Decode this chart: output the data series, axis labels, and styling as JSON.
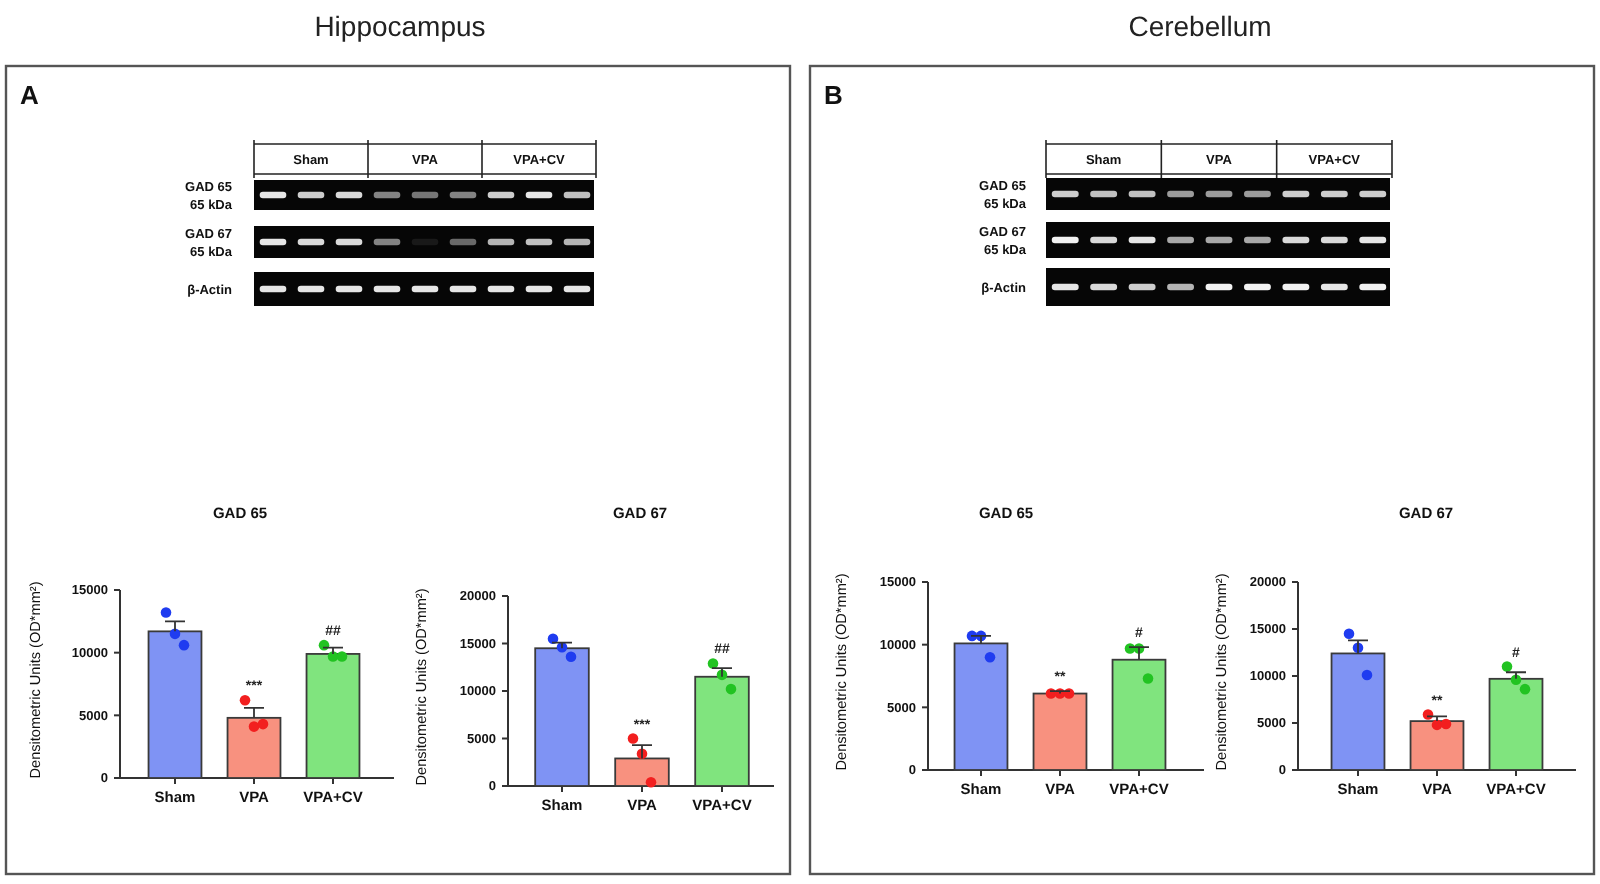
{
  "chart_data": [
    {
      "type": "other",
      "title": "Hippocampus",
      "categories": [
        "Sham",
        "VPA",
        "VPA+CV"
      ],
      "annotations": [
        "A",
        "GAD 65\n65 kDa",
        "GAD 67\n65 kDa",
        "β-Actin"
      ]
    },
    {
      "type": "bar",
      "title": "GAD 65",
      "ylabel": "Densitometric Units (OD*mm²)",
      "categories": [
        "Sham",
        "VPA",
        "VPA+CV"
      ],
      "ylim": [
        0,
        15000
      ],
      "yticks": [
        0,
        5000,
        10000,
        15000
      ],
      "series": [
        {
          "type": "bar",
          "colors": [
            "#7f93f4",
            "#f8917f",
            "#80e47e"
          ],
          "values": [
            11700,
            4800,
            9900
          ],
          "errors": [
            [
              11700,
              12500
            ],
            [
              4800,
              5600
            ],
            [
              9900,
              10400
            ]
          ]
        },
        {
          "type": "scatter",
          "marker": "circle",
          "x": [
            "Sham",
            "Sham",
            "Sham",
            "VPA",
            "VPA",
            "VPA",
            "VPA+CV",
            "VPA+CV",
            "VPA+CV"
          ],
          "values": [
            13200,
            11500,
            10600,
            6200,
            4100,
            4300,
            10600,
            9700,
            9700
          ],
          "colors": [
            "#1f3cf0",
            "#1f3cf0",
            "#1f3cf0",
            "#f21f1f",
            "#f21f1f",
            "#f21f1f",
            "#22c322",
            "#22c322",
            "#22c322"
          ]
        }
      ],
      "annotations": [
        {
          "text": "***",
          "x": "VPA",
          "y": 6200
        },
        {
          "text": "##",
          "x": "VPA+CV",
          "y": 10600
        }
      ]
    },
    {
      "type": "bar",
      "title": "GAD 67",
      "ylabel": "Densitometric Units (OD*mm²)",
      "categories": [
        "Sham",
        "VPA",
        "VPA+CV"
      ],
      "ylim": [
        0,
        20000
      ],
      "yticks": [
        0,
        5000,
        10000,
        15000,
        20000
      ],
      "series": [
        {
          "type": "bar",
          "colors": [
            "#7f93f4",
            "#f8917f",
            "#80e47e"
          ],
          "values": [
            14500,
            2900,
            11500
          ],
          "errors": [
            [
              14500,
              15100
            ],
            [
              2900,
              4300
            ],
            [
              11500,
              12400
            ]
          ]
        },
        {
          "type": "scatter",
          "marker": "circle",
          "x": [
            "Sham",
            "Sham",
            "Sham",
            "VPA",
            "VPA",
            "VPA",
            "VPA+CV",
            "VPA+CV",
            "VPA+CV"
          ],
          "values": [
            15500,
            14600,
            13600,
            5000,
            3400,
            400,
            12900,
            11700,
            10200
          ],
          "colors": [
            "#1f3cf0",
            "#1f3cf0",
            "#1f3cf0",
            "#f21f1f",
            "#f21f1f",
            "#f21f1f",
            "#22c322",
            "#22c322",
            "#22c322"
          ]
        }
      ],
      "annotations": [
        {
          "text": "***",
          "x": "VPA",
          "y": 5000
        },
        {
          "text": "##",
          "x": "VPA+CV",
          "y": 12900
        }
      ]
    },
    {
      "type": "other",
      "title": "Cerebellum",
      "categories": [
        "Sham",
        "VPA",
        "VPA+CV"
      ],
      "annotations": [
        "B",
        "GAD 65\n65 kDa",
        "GAD 67\n65 kDa",
        "β-Actin"
      ]
    },
    {
      "type": "bar",
      "title": "GAD 65",
      "ylabel": "Densitometric Units (OD*mm²)",
      "categories": [
        "Sham",
        "VPA",
        "VPA+CV"
      ],
      "ylim": [
        0,
        15000
      ],
      "yticks": [
        0,
        5000,
        10000,
        15000
      ],
      "series": [
        {
          "type": "bar",
          "colors": [
            "#7f93f4",
            "#f8917f",
            "#80e47e"
          ],
          "values": [
            10100,
            6100,
            8800
          ],
          "errors": [
            [
              10100,
              10700
            ],
            [
              6100,
              6300
            ],
            [
              8800,
              9800
            ]
          ]
        },
        {
          "type": "scatter",
          "marker": "circle",
          "x": [
            "Sham",
            "Sham",
            "Sham",
            "VPA",
            "VPA",
            "VPA",
            "VPA+CV",
            "VPA+CV",
            "VPA+CV"
          ],
          "values": [
            10700,
            10700,
            9000,
            6100,
            6100,
            6100,
            9700,
            9700,
            7300
          ],
          "colors": [
            "#1f3cf0",
            "#1f3cf0",
            "#1f3cf0",
            "#f21f1f",
            "#f21f1f",
            "#f21f1f",
            "#22c322",
            "#22c322",
            "#22c322"
          ]
        }
      ],
      "annotations": [
        {
          "text": "**",
          "x": "VPA",
          "y": 6300
        },
        {
          "text": "#",
          "x": "VPA+CV",
          "y": 9800
        }
      ]
    },
    {
      "type": "bar",
      "title": "GAD 67",
      "ylabel": "Densitometric Units (OD*mm²)",
      "categories": [
        "Sham",
        "VPA",
        "VPA+CV"
      ],
      "ylim": [
        0,
        20000
      ],
      "yticks": [
        0,
        5000,
        10000,
        15000,
        20000
      ],
      "series": [
        {
          "type": "bar",
          "colors": [
            "#7f93f4",
            "#f8917f",
            "#80e47e"
          ],
          "values": [
            12400,
            5200,
            9700
          ],
          "errors": [
            [
              12400,
              13800
            ],
            [
              5200,
              5700
            ],
            [
              9700,
              10400
            ]
          ]
        },
        {
          "type": "scatter",
          "marker": "circle",
          "x": [
            "Sham",
            "Sham",
            "Sham",
            "VPA",
            "VPA",
            "VPA",
            "VPA+CV",
            "VPA+CV",
            "VPA+CV"
          ],
          "values": [
            14500,
            13000,
            10100,
            5900,
            4800,
            4900,
            11000,
            9600,
            8600
          ],
          "colors": [
            "#1f3cf0",
            "#1f3cf0",
            "#1f3cf0",
            "#f21f1f",
            "#f21f1f",
            "#f21f1f",
            "#22c322",
            "#22c322",
            "#22c322"
          ]
        }
      ],
      "annotations": [
        {
          "text": "**",
          "x": "VPA",
          "y": 5900
        },
        {
          "text": "#",
          "x": "VPA+CV",
          "y": 11000
        }
      ]
    }
  ]
}
